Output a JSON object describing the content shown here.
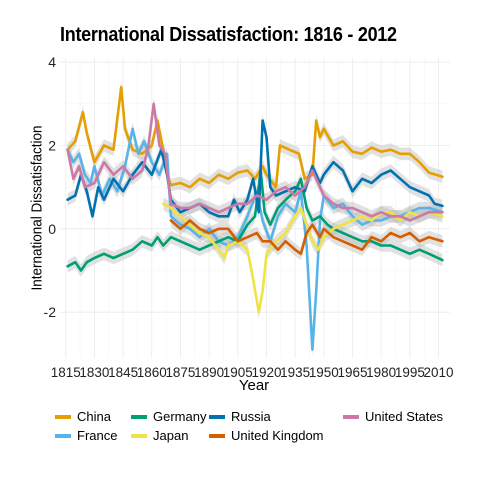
{
  "chart_data": {
    "type": "line",
    "title": "International Dissatisfaction: 1816 - 2012",
    "xlabel": "Year",
    "ylabel": "International Dissatisfaction",
    "xlim": [
      1812,
      2016
    ],
    "ylim": [
      -3.1,
      4.1
    ],
    "x_ticks": [
      1815,
      1830,
      1845,
      1860,
      1875,
      1890,
      1905,
      1920,
      1935,
      1950,
      1965,
      1980,
      1995,
      2010
    ],
    "y_ticks": [
      -2,
      0,
      2,
      4
    ],
    "grid": true,
    "legend_position": "bottom",
    "series": [
      {
        "name": "China",
        "color": "#E69F00",
        "points": [
          [
            1816,
            1.9
          ],
          [
            1820,
            2.1
          ],
          [
            1824,
            2.8
          ],
          [
            1826,
            2.3
          ],
          [
            1830,
            1.6
          ],
          [
            1835,
            2.0
          ],
          [
            1840,
            1.9
          ],
          [
            1844,
            3.4
          ],
          [
            1846,
            2.4
          ],
          [
            1850,
            1.9
          ],
          [
            1855,
            1.8
          ],
          [
            1860,
            2.0
          ],
          [
            1863,
            2.6
          ],
          [
            1866,
            1.9
          ],
          [
            1868,
            1.3
          ],
          [
            1870,
            1.05
          ],
          [
            1875,
            1.1
          ],
          [
            1880,
            1.0
          ],
          [
            1885,
            1.2
          ],
          [
            1890,
            1.1
          ],
          [
            1895,
            1.3
          ],
          [
            1900,
            1.2
          ],
          [
            1905,
            1.35
          ],
          [
            1910,
            1.4
          ],
          [
            1914,
            1.2
          ],
          [
            1918,
            1.5
          ],
          [
            1920,
            1.3
          ],
          [
            1925,
            1.0
          ],
          [
            1927,
            2.0
          ],
          [
            1932,
            1.9
          ],
          [
            1937,
            1.8
          ],
          [
            1940,
            1.2
          ],
          [
            1944,
            1.3
          ],
          [
            1946,
            2.6
          ],
          [
            1948,
            2.2
          ],
          [
            1950,
            2.4
          ],
          [
            1955,
            2.0
          ],
          [
            1960,
            2.1
          ],
          [
            1965,
            1.85
          ],
          [
            1970,
            1.8
          ],
          [
            1975,
            1.95
          ],
          [
            1980,
            1.85
          ],
          [
            1985,
            1.9
          ],
          [
            1990,
            1.8
          ],
          [
            1995,
            1.8
          ],
          [
            2000,
            1.6
          ],
          [
            2005,
            1.35
          ],
          [
            2012,
            1.25
          ]
        ]
      },
      {
        "name": "France",
        "color": "#56B4E9",
        "points": [
          [
            1816,
            1.9
          ],
          [
            1819,
            1.6
          ],
          [
            1822,
            1.8
          ],
          [
            1825,
            1.3
          ],
          [
            1828,
            1.1
          ],
          [
            1830,
            1.5
          ],
          [
            1834,
            0.8
          ],
          [
            1838,
            1.2
          ],
          [
            1842,
            0.9
          ],
          [
            1846,
            1.5
          ],
          [
            1850,
            2.4
          ],
          [
            1853,
            1.8
          ],
          [
            1856,
            2.1
          ],
          [
            1860,
            1.6
          ],
          [
            1864,
            1.3
          ],
          [
            1868,
            1.8
          ],
          [
            1870,
            0.3
          ],
          [
            1875,
            0.1
          ],
          [
            1880,
            0.0
          ],
          [
            1885,
            -0.2
          ],
          [
            1890,
            0.0
          ],
          [
            1895,
            -0.3
          ],
          [
            1900,
            -0.4
          ],
          [
            1905,
            -0.2
          ],
          [
            1910,
            0.3
          ],
          [
            1915,
            0.9
          ],
          [
            1918,
            0.2
          ],
          [
            1922,
            -0.3
          ],
          [
            1926,
            0.3
          ],
          [
            1930,
            0.6
          ],
          [
            1935,
            0.4
          ],
          [
            1938,
            0.9
          ],
          [
            1941,
            -0.4
          ],
          [
            1944,
            -2.9
          ],
          [
            1946,
            -1.5
          ],
          [
            1948,
            0.2
          ],
          [
            1950,
            0.8
          ],
          [
            1955,
            0.5
          ],
          [
            1960,
            0.6
          ],
          [
            1965,
            0.3
          ],
          [
            1970,
            0.1
          ],
          [
            1975,
            0.2
          ],
          [
            1980,
            0.2
          ],
          [
            1985,
            0.3
          ],
          [
            1990,
            0.3
          ],
          [
            1995,
            0.4
          ],
          [
            2000,
            0.5
          ],
          [
            2005,
            0.5
          ],
          [
            2012,
            0.4
          ]
        ]
      },
      {
        "name": "Germany",
        "color": "#009E73",
        "points": [
          [
            1816,
            -0.9
          ],
          [
            1820,
            -0.8
          ],
          [
            1823,
            -1.0
          ],
          [
            1826,
            -0.8
          ],
          [
            1830,
            -0.7
          ],
          [
            1835,
            -0.6
          ],
          [
            1840,
            -0.7
          ],
          [
            1845,
            -0.6
          ],
          [
            1850,
            -0.5
          ],
          [
            1855,
            -0.3
          ],
          [
            1860,
            -0.4
          ],
          [
            1863,
            -0.2
          ],
          [
            1866,
            -0.4
          ],
          [
            1870,
            -0.2
          ],
          [
            1875,
            -0.3
          ],
          [
            1880,
            -0.4
          ],
          [
            1885,
            -0.5
          ],
          [
            1890,
            -0.4
          ],
          [
            1895,
            -0.3
          ],
          [
            1900,
            -0.2
          ],
          [
            1905,
            -0.3
          ],
          [
            1910,
            0.1
          ],
          [
            1914,
            0.3
          ],
          [
            1917,
            1.4
          ],
          [
            1919,
            0.4
          ],
          [
            1922,
            0.1
          ],
          [
            1926,
            0.5
          ],
          [
            1930,
            0.7
          ],
          [
            1935,
            0.9
          ],
          [
            1938,
            1.2
          ],
          [
            1941,
            0.5
          ],
          [
            1944,
            0.2
          ],
          [
            1948,
            0.3
          ],
          [
            1952,
            0.1
          ],
          [
            1955,
            0.0
          ],
          [
            1960,
            -0.1
          ],
          [
            1965,
            -0.2
          ],
          [
            1970,
            -0.3
          ],
          [
            1975,
            -0.3
          ],
          [
            1980,
            -0.4
          ],
          [
            1985,
            -0.4
          ],
          [
            1990,
            -0.5
          ],
          [
            1995,
            -0.6
          ],
          [
            2000,
            -0.5
          ],
          [
            2005,
            -0.6
          ],
          [
            2012,
            -0.75
          ]
        ]
      },
      {
        "name": "Japan",
        "color": "#F0E442",
        "points": [
          [
            1866,
            0.6
          ],
          [
            1870,
            0.5
          ],
          [
            1875,
            0.3
          ],
          [
            1880,
            0.1
          ],
          [
            1885,
            -0.1
          ],
          [
            1890,
            -0.2
          ],
          [
            1895,
            -0.5
          ],
          [
            1898,
            -0.7
          ],
          [
            1900,
            -0.4
          ],
          [
            1905,
            -0.3
          ],
          [
            1910,
            -0.5
          ],
          [
            1913,
            -1.2
          ],
          [
            1916,
            -2.0
          ],
          [
            1918,
            -1.5
          ],
          [
            1920,
            -0.6
          ],
          [
            1925,
            -0.3
          ],
          [
            1930,
            -0.1
          ],
          [
            1935,
            0.3
          ],
          [
            1938,
            0.5
          ],
          [
            1941,
            0.1
          ],
          [
            1944,
            -0.3
          ],
          [
            1947,
            -0.5
          ],
          [
            1950,
            -0.2
          ],
          [
            1955,
            0.0
          ],
          [
            1960,
            0.1
          ],
          [
            1965,
            0.2
          ],
          [
            1970,
            0.3
          ],
          [
            1975,
            0.2
          ],
          [
            1980,
            0.4
          ],
          [
            1985,
            0.4
          ],
          [
            1990,
            0.2
          ],
          [
            1995,
            0.4
          ],
          [
            2000,
            0.3
          ],
          [
            2005,
            0.4
          ],
          [
            2012,
            0.3
          ]
        ]
      },
      {
        "name": "Russia",
        "color": "#0072B2",
        "points": [
          [
            1816,
            0.7
          ],
          [
            1820,
            0.8
          ],
          [
            1823,
            1.3
          ],
          [
            1826,
            0.9
          ],
          [
            1829,
            0.3
          ],
          [
            1832,
            1.0
          ],
          [
            1835,
            0.7
          ],
          [
            1840,
            1.2
          ],
          [
            1845,
            0.9
          ],
          [
            1850,
            1.3
          ],
          [
            1855,
            1.6
          ],
          [
            1860,
            1.3
          ],
          [
            1865,
            1.9
          ],
          [
            1868,
            1.3
          ],
          [
            1870,
            0.7
          ],
          [
            1875,
            0.4
          ],
          [
            1880,
            0.5
          ],
          [
            1885,
            0.6
          ],
          [
            1890,
            0.4
          ],
          [
            1895,
            0.3
          ],
          [
            1900,
            0.3
          ],
          [
            1903,
            0.7
          ],
          [
            1906,
            0.4
          ],
          [
            1910,
            0.7
          ],
          [
            1913,
            1.2
          ],
          [
            1916,
            0.4
          ],
          [
            1918,
            2.6
          ],
          [
            1920,
            2.2
          ],
          [
            1922,
            1.0
          ],
          [
            1925,
            0.8
          ],
          [
            1930,
            0.9
          ],
          [
            1935,
            1.0
          ],
          [
            1940,
            0.9
          ],
          [
            1944,
            1.5
          ],
          [
            1948,
            1.1
          ],
          [
            1950,
            1.3
          ],
          [
            1955,
            1.6
          ],
          [
            1960,
            1.4
          ],
          [
            1965,
            0.9
          ],
          [
            1970,
            1.2
          ],
          [
            1975,
            1.1
          ],
          [
            1980,
            1.3
          ],
          [
            1985,
            1.4
          ],
          [
            1990,
            1.2
          ],
          [
            1995,
            1.0
          ],
          [
            2000,
            0.9
          ],
          [
            2005,
            0.8
          ],
          [
            2008,
            0.6
          ],
          [
            2012,
            0.55
          ]
        ]
      },
      {
        "name": "United Kingdom",
        "color": "#D55E00",
        "points": [
          [
            1870,
            0.2
          ],
          [
            1875,
            0.0
          ],
          [
            1880,
            0.2
          ],
          [
            1885,
            0.0
          ],
          [
            1890,
            -0.1
          ],
          [
            1895,
            0.0
          ],
          [
            1900,
            0.0
          ],
          [
            1905,
            -0.3
          ],
          [
            1910,
            -0.2
          ],
          [
            1915,
            -0.1
          ],
          [
            1918,
            -0.3
          ],
          [
            1922,
            -0.3
          ],
          [
            1926,
            -0.5
          ],
          [
            1930,
            -0.3
          ],
          [
            1935,
            -0.5
          ],
          [
            1938,
            -0.6
          ],
          [
            1941,
            -0.1
          ],
          [
            1944,
            0.1
          ],
          [
            1948,
            -0.2
          ],
          [
            1950,
            0.0
          ],
          [
            1955,
            -0.2
          ],
          [
            1960,
            -0.3
          ],
          [
            1965,
            -0.4
          ],
          [
            1970,
            -0.5
          ],
          [
            1975,
            -0.2
          ],
          [
            1980,
            -0.3
          ],
          [
            1985,
            -0.1
          ],
          [
            1990,
            -0.2
          ],
          [
            1995,
            -0.1
          ],
          [
            2000,
            -0.3
          ],
          [
            2005,
            -0.2
          ],
          [
            2012,
            -0.3
          ]
        ]
      },
      {
        "name": "United States",
        "color": "#CC79A7",
        "points": [
          [
            1816,
            1.9
          ],
          [
            1819,
            1.2
          ],
          [
            1822,
            1.5
          ],
          [
            1825,
            1.0
          ],
          [
            1830,
            1.1
          ],
          [
            1835,
            1.6
          ],
          [
            1840,
            1.3
          ],
          [
            1845,
            1.5
          ],
          [
            1850,
            1.2
          ],
          [
            1855,
            1.4
          ],
          [
            1858,
            1.9
          ],
          [
            1861,
            3.0
          ],
          [
            1864,
            2.0
          ],
          [
            1867,
            1.8
          ],
          [
            1870,
            0.6
          ],
          [
            1875,
            0.5
          ],
          [
            1880,
            0.5
          ],
          [
            1885,
            0.6
          ],
          [
            1890,
            0.5
          ],
          [
            1895,
            0.4
          ],
          [
            1900,
            0.5
          ],
          [
            1905,
            0.6
          ],
          [
            1910,
            0.6
          ],
          [
            1915,
            0.8
          ],
          [
            1920,
            0.7
          ],
          [
            1925,
            0.9
          ],
          [
            1930,
            1.0
          ],
          [
            1935,
            0.8
          ],
          [
            1940,
            1.0
          ],
          [
            1944,
            1.4
          ],
          [
            1948,
            1.0
          ],
          [
            1950,
            0.8
          ],
          [
            1955,
            0.6
          ],
          [
            1960,
            0.5
          ],
          [
            1965,
            0.5
          ],
          [
            1970,
            0.4
          ],
          [
            1975,
            0.3
          ],
          [
            1980,
            0.4
          ],
          [
            1985,
            0.3
          ],
          [
            1990,
            0.3
          ],
          [
            1995,
            0.2
          ],
          [
            2000,
            0.3
          ],
          [
            2005,
            0.4
          ],
          [
            2012,
            0.4
          ]
        ]
      }
    ]
  }
}
